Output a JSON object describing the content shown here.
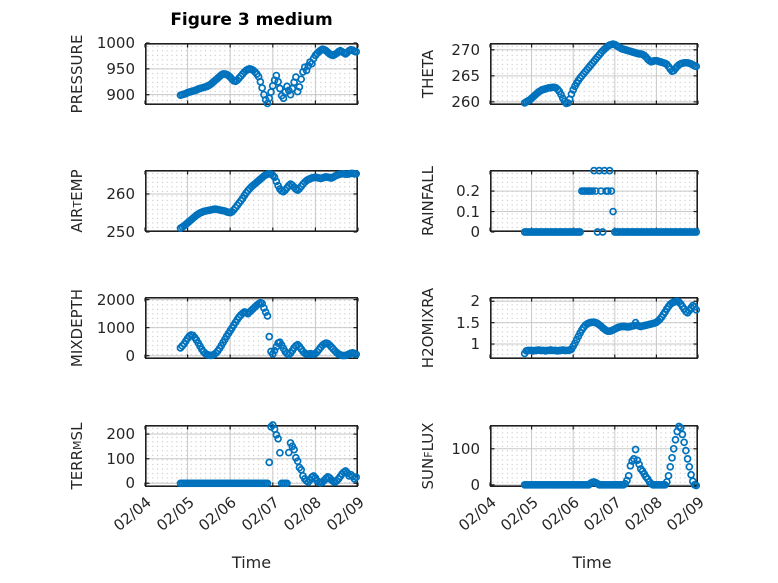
{
  "title": "Figure 3 medium",
  "xlabel": "Time",
  "colors": {
    "marker": "#0072BD",
    "axis": "#1f1f1f",
    "major_grid": "#c9c9c9",
    "minor_grid_dot": "#c4c4c4",
    "text": "#262626",
    "background": "#ffffff"
  },
  "time": {
    "start": 4.8333,
    "step": 0.041667,
    "count": 100,
    "unit": "day of February"
  },
  "xlim": [
    4,
    9
  ],
  "xticks": {
    "values": [
      4,
      5,
      6,
      7,
      8,
      9
    ],
    "labels": [
      "02/04",
      "02/05",
      "02/06",
      "02/07",
      "02/08",
      "02/09"
    ]
  },
  "chart_data": [
    {
      "name": "PRESSURE",
      "type": "scatter",
      "marker": "o",
      "label_parts": [
        {
          "text": "PRESSURE",
          "sub": false
        }
      ],
      "ytick_labels": [
        "900",
        "950",
        "1000"
      ],
      "yticks": [
        900,
        950,
        1000
      ],
      "ylim": [
        880,
        1000
      ],
      "values": [
        899,
        900,
        901,
        902,
        904,
        905,
        906,
        907,
        908,
        909,
        911,
        912,
        913,
        914,
        915,
        916,
        918,
        920,
        923,
        926,
        929,
        932,
        935,
        938,
        940,
        940,
        939,
        937,
        934,
        930,
        927,
        926,
        928,
        932,
        936,
        940,
        944,
        947,
        949,
        950,
        949,
        947,
        944,
        940,
        935,
        925,
        913,
        900,
        890,
        883,
        893,
        905,
        917,
        928,
        937,
        925,
        912,
        898,
        893,
        905,
        916,
        908,
        900,
        912,
        924,
        934,
        906,
        915,
        930,
        944,
        953,
        947,
        956,
        963,
        960,
        970,
        976,
        980,
        983,
        986,
        988,
        987,
        985,
        982,
        979,
        977,
        976,
        978,
        980,
        983,
        985,
        983,
        981,
        979,
        982,
        985,
        987,
        986,
        984,
        983
      ]
    },
    {
      "name": "THETA",
      "type": "scatter",
      "marker": "o",
      "label_parts": [
        {
          "text": "THETA",
          "sub": false
        }
      ],
      "ytick_labels": [
        "260",
        "265",
        "270"
      ],
      "yticks": [
        260,
        265,
        270
      ],
      "ylim": [
        259.4,
        271.3
      ],
      "values": [
        259.8,
        260.0,
        260.2,
        260.4,
        260.7,
        261.0,
        261.3,
        261.6,
        261.9,
        262.1,
        262.3,
        262.4,
        262.5,
        262.6,
        262.7,
        262.7,
        262.8,
        262.8,
        262.7,
        262.4,
        262.0,
        261.4,
        260.7,
        260.1,
        259.7,
        259.8,
        260.5,
        261.5,
        262.3,
        263.0,
        263.6,
        264.1,
        264.6,
        265.0,
        265.4,
        265.8,
        266.2,
        266.6,
        267.0,
        267.4,
        267.8,
        268.2,
        268.6,
        269.0,
        269.4,
        269.8,
        270.1,
        270.4,
        270.7,
        270.9,
        271.0,
        271.1,
        271.0,
        270.8,
        270.6,
        270.4,
        270.2,
        270.1,
        270.0,
        269.9,
        269.8,
        269.7,
        269.6,
        269.5,
        269.4,
        269.3,
        269.2,
        269.2,
        269.1,
        268.9,
        268.6,
        268.2,
        267.9,
        267.7,
        267.8,
        267.9,
        267.9,
        267.8,
        267.7,
        267.6,
        267.5,
        267.4,
        267.2,
        266.8,
        266.3,
        265.9,
        266.0,
        266.4,
        266.8,
        267.1,
        267.3,
        267.4,
        267.5,
        267.5,
        267.5,
        267.4,
        267.3,
        267.1,
        266.9,
        266.8
      ]
    },
    {
      "name": "AIR_TEMP",
      "type": "scatter",
      "marker": "o",
      "label_parts": [
        {
          "text": "AIR",
          "sub": false
        },
        {
          "text": "T",
          "sub": true
        },
        {
          "text": "EMP",
          "sub": false
        }
      ],
      "ytick_labels": [
        "250",
        "260"
      ],
      "yticks": [
        250,
        260
      ],
      "ylim": [
        250,
        266.3
      ],
      "values": [
        251.0,
        251.3,
        251.6,
        252.0,
        252.4,
        252.8,
        253.2,
        253.6,
        254.0,
        254.4,
        254.7,
        255.0,
        255.2,
        255.4,
        255.5,
        255.6,
        255.7,
        255.8,
        255.9,
        256.0,
        256.0,
        255.9,
        255.8,
        255.7,
        255.6,
        255.5,
        255.3,
        255.2,
        255.1,
        255.3,
        255.8,
        256.4,
        257.0,
        257.6,
        258.2,
        258.8,
        259.6,
        260.3,
        260.9,
        261.4,
        261.9,
        262.3,
        262.7,
        263.1,
        263.5,
        263.9,
        264.3,
        264.7,
        265.0,
        265.2,
        265.3,
        265.2,
        264.9,
        264.4,
        263.3,
        262.2,
        261.3,
        260.8,
        260.6,
        261.0,
        261.6,
        262.2,
        262.6,
        262.3,
        261.8,
        261.3,
        261.0,
        261.4,
        262.0,
        262.6,
        263.1,
        263.5,
        263.8,
        264.0,
        264.2,
        264.3,
        264.4,
        264.3,
        264.2,
        264.1,
        264.2,
        264.4,
        264.5,
        264.4,
        264.3,
        264.2,
        264.4,
        264.7,
        264.9,
        265.1,
        265.2,
        265.3,
        265.3,
        265.2,
        265.2,
        265.3,
        265.4,
        265.4,
        265.3,
        265.3
      ]
    },
    {
      "name": "RAINFALL",
      "type": "scatter",
      "marker": "o",
      "label_parts": [
        {
          "text": "RAINFALL",
          "sub": false
        }
      ],
      "ytick_labels": [
        "0",
        "0.1",
        "0.2"
      ],
      "yticks": [
        0,
        0.1,
        0.2
      ],
      "ylim": [
        0,
        0.303
      ],
      "values": [
        0,
        0,
        0,
        0,
        0,
        0,
        0,
        0,
        0,
        0,
        0,
        0,
        0,
        0,
        0,
        0,
        0,
        0,
        0,
        0,
        0,
        0,
        0,
        0,
        0,
        0,
        0,
        0,
        0,
        0,
        0,
        0,
        0,
        0.2,
        0.2,
        0.2,
        0.2,
        0.2,
        0.2,
        0.2,
        0.3,
        0.2,
        0,
        0.3,
        0.2,
        0,
        0.3,
        0.2,
        0.2,
        0.3,
        0.2,
        0.1,
        0,
        0,
        0,
        0,
        0,
        0,
        0,
        0,
        0,
        0,
        0,
        0,
        0,
        0,
        0,
        0,
        0,
        0,
        0,
        0,
        0,
        0,
        0,
        0,
        0,
        0,
        0,
        0,
        0,
        0,
        0,
        0,
        0,
        0,
        0,
        0,
        0,
        0,
        0,
        0,
        0,
        0,
        0,
        0,
        0,
        0,
        0,
        0
      ]
    },
    {
      "name": "MIXDEPTH",
      "type": "scatter",
      "marker": "o",
      "label_parts": [
        {
          "text": "MIXDEPTH",
          "sub": false
        }
      ],
      "ytick_labels": [
        "0",
        "1000",
        "2000"
      ],
      "yticks": [
        0,
        1000,
        2000
      ],
      "ylim": [
        -117,
        2092
      ],
      "values": [
        280,
        350,
        420,
        520,
        620,
        700,
        740,
        720,
        650,
        560,
        450,
        340,
        230,
        140,
        80,
        40,
        20,
        10,
        20,
        50,
        100,
        170,
        260,
        360,
        470,
        580,
        690,
        790,
        890,
        990,
        1090,
        1190,
        1290,
        1380,
        1450,
        1510,
        1560,
        1540,
        1500,
        1560,
        1620,
        1680,
        1740,
        1800,
        1850,
        1890,
        1860,
        1700,
        1550,
        1420,
        680,
        150,
        60,
        180,
        320,
        450,
        480,
        380,
        260,
        150,
        80,
        40,
        90,
        180,
        280,
        350,
        390,
        330,
        240,
        150,
        90,
        60,
        50,
        70,
        60,
        50,
        80,
        140,
        220,
        300,
        370,
        420,
        450,
        430,
        380,
        310,
        240,
        170,
        110,
        60,
        30,
        10,
        5,
        10,
        30,
        60,
        90,
        100,
        80,
        50
      ]
    },
    {
      "name": "H2OMIXRA",
      "type": "scatter",
      "marker": "o",
      "label_parts": [
        {
          "text": "H2OMIXRA",
          "sub": false
        }
      ],
      "ytick_labels": [
        "1",
        "1.5",
        "2"
      ],
      "yticks": [
        1,
        1.5,
        2
      ],
      "ylim": [
        0.65,
        2.1
      ],
      "values": [
        0.78,
        0.84,
        0.85,
        0.85,
        0.85,
        0.84,
        0.85,
        0.85,
        0.86,
        0.85,
        0.85,
        0.85,
        0.84,
        0.85,
        0.85,
        0.86,
        0.85,
        0.85,
        0.85,
        0.84,
        0.85,
        0.85,
        0.86,
        0.85,
        0.85,
        0.85,
        0.86,
        0.88,
        0.95,
        1.02,
        1.1,
        1.18,
        1.26,
        1.33,
        1.39,
        1.44,
        1.47,
        1.49,
        1.5,
        1.51,
        1.51,
        1.5,
        1.48,
        1.45,
        1.42,
        1.38,
        1.35,
        1.32,
        1.3,
        1.3,
        1.31,
        1.33,
        1.35,
        1.37,
        1.39,
        1.4,
        1.41,
        1.41,
        1.41,
        1.4,
        1.4,
        1.41,
        1.42,
        1.43,
        1.5,
        1.44,
        1.42,
        1.41,
        1.42,
        1.43,
        1.44,
        1.45,
        1.46,
        1.47,
        1.48,
        1.49,
        1.51,
        1.54,
        1.58,
        1.63,
        1.69,
        1.75,
        1.82,
        1.88,
        1.93,
        1.96,
        1.98,
        1.99,
        2.0,
        1.98,
        1.94,
        1.88,
        1.82,
        1.76,
        1.73,
        1.78,
        1.85,
        1.9,
        1.87,
        1.8
      ]
    },
    {
      "name": "TERR_MSL",
      "type": "scatter",
      "marker": "o",
      "label_parts": [
        {
          "text": "TERR",
          "sub": false
        },
        {
          "text": "M",
          "sub": true
        },
        {
          "text": "SL",
          "sub": false
        }
      ],
      "ytick_labels": [
        "0",
        "100",
        "200"
      ],
      "yticks": [
        0,
        100,
        200
      ],
      "ylim": [
        -15,
        237
      ],
      "values": [
        0,
        0,
        0,
        0,
        0,
        0,
        0,
        0,
        0,
        0,
        0,
        0,
        0,
        0,
        0,
        0,
        0,
        0,
        0,
        0,
        0,
        0,
        0,
        0,
        0,
        0,
        0,
        0,
        0,
        0,
        0,
        0,
        0,
        0,
        0,
        0,
        0,
        0,
        0,
        0,
        0,
        0,
        0,
        0,
        0,
        0,
        0,
        0,
        0,
        0,
        85,
        230,
        237,
        220,
        197,
        181,
        124,
        0,
        0,
        0,
        0,
        125,
        164,
        150,
        137,
        104,
        90,
        64,
        55,
        30,
        18,
        10,
        5,
        14,
        25,
        30,
        22,
        10,
        4,
        2,
        5,
        12,
        20,
        26,
        22,
        14,
        8,
        5,
        10,
        18,
        28,
        38,
        45,
        50,
        42,
        30,
        35,
        28,
        18,
        25
      ]
    },
    {
      "name": "SUN_FLUX",
      "type": "scatter",
      "marker": "o",
      "label_parts": [
        {
          "text": "SUN",
          "sub": false
        },
        {
          "text": "F",
          "sub": true
        },
        {
          "text": "LUX",
          "sub": false
        }
      ],
      "ytick_labels": [
        "0",
        "100"
      ],
      "yticks": [
        0,
        100
      ],
      "ylim": [
        -6,
        166
      ],
      "values": [
        0,
        0,
        0,
        0,
        0,
        0,
        0,
        0,
        0,
        0,
        0,
        0,
        0,
        0,
        0,
        0,
        0,
        0,
        0,
        0,
        0,
        0,
        0,
        0,
        0,
        0,
        0,
        0,
        0,
        0,
        0,
        0,
        0,
        0,
        0,
        0,
        0,
        0,
        4,
        7,
        8,
        6,
        3,
        0,
        0,
        0,
        0,
        0,
        0,
        0,
        0,
        0,
        0,
        0,
        0,
        0,
        0,
        0,
        3,
        12,
        25,
        53,
        66,
        72,
        98,
        68,
        57,
        44,
        38,
        30,
        22,
        16,
        8,
        3,
        0,
        0,
        0,
        0,
        0,
        0,
        0,
        0,
        8,
        25,
        50,
        75,
        100,
        125,
        148,
        162,
        158,
        140,
        118,
        95,
        72,
        50,
        28,
        10,
        0,
        -2
      ]
    }
  ]
}
